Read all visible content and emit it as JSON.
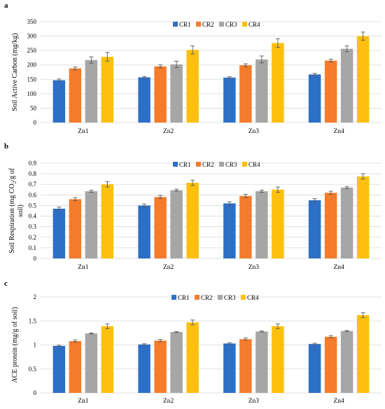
{
  "colors": {
    "CR1": "#2e6fc6",
    "CR2": "#f47c2c",
    "CR3": "#a6a6a6",
    "CR4": "#fdc00f",
    "grid": "#d9d9d9",
    "error_bar": "#595959"
  },
  "chart_data": [
    {
      "type": "bar",
      "panel_label": "a",
      "title": "",
      "ylabel": "Soil Active Carbon (mg/kg)",
      "xlabel": "",
      "categories": [
        "Zn1",
        "Zn2",
        "Zn3",
        "Zn4"
      ],
      "ylim": [
        0,
        350
      ],
      "yticks": [
        0,
        50,
        100,
        150,
        200,
        250,
        300,
        350
      ],
      "ytick_labels": [
        "0",
        "50",
        "100",
        "150",
        "200",
        "250",
        "300",
        "350"
      ],
      "grid": true,
      "legend": "top-center",
      "series": [
        {
          "name": "CR1",
          "values": [
            147,
            157,
            156,
            167
          ],
          "errors": [
            4,
            3,
            3,
            4
          ]
        },
        {
          "name": "CR2",
          "values": [
            188,
            195,
            199,
            215
          ],
          "errors": [
            5,
            5,
            5,
            5
          ]
        },
        {
          "name": "CR3",
          "values": [
            217,
            202,
            219,
            256
          ],
          "errors": [
            11,
            11,
            12,
            10
          ]
        },
        {
          "name": "CR4",
          "values": [
            228,
            252,
            276,
            300
          ],
          "errors": [
            15,
            14,
            15,
            14
          ]
        }
      ]
    },
    {
      "type": "bar",
      "panel_label": "b",
      "title": "",
      "ylabel": "Soil Respiration (mg CO2/g of soil)",
      "ylabel_parts": [
        "Soil Respiration (mg CO",
        "2",
        "/g of",
        "soil)"
      ],
      "xlabel": "",
      "categories": [
        "Zn1",
        "Zn2",
        "Zn3",
        "Zn4"
      ],
      "ylim": [
        0,
        0.9
      ],
      "yticks": [
        0,
        0.1,
        0.2,
        0.3,
        0.4,
        0.5,
        0.6,
        0.7,
        0.8,
        0.9
      ],
      "ytick_labels": [
        "0",
        "0.1",
        "0.2",
        "0.3",
        "0.4",
        "0.5",
        "0.6",
        "0.7",
        "0.8",
        "0.9"
      ],
      "grid": true,
      "legend": "top-center",
      "series": [
        {
          "name": "CR1",
          "values": [
            0.47,
            0.5,
            0.52,
            0.55
          ],
          "errors": [
            0.015,
            0.015,
            0.015,
            0.015
          ]
        },
        {
          "name": "CR2",
          "values": [
            0.56,
            0.58,
            0.59,
            0.62
          ],
          "errors": [
            0.015,
            0.015,
            0.015,
            0.015
          ]
        },
        {
          "name": "CR3",
          "values": [
            0.635,
            0.645,
            0.635,
            0.67
          ],
          "errors": [
            0.01,
            0.01,
            0.01,
            0.01
          ]
        },
        {
          "name": "CR4",
          "values": [
            0.7,
            0.715,
            0.65,
            0.775
          ],
          "errors": [
            0.025,
            0.025,
            0.025,
            0.025
          ]
        }
      ]
    },
    {
      "type": "bar",
      "panel_label": "c",
      "title": "",
      "ylabel": "ACE protein (mg/g of soil)",
      "xlabel": "",
      "categories": [
        "Zn1",
        "Zn2",
        "Zn3",
        "Zn4"
      ],
      "ylim": [
        0,
        2
      ],
      "yticks": [
        0,
        0.5,
        1,
        1.5,
        2
      ],
      "ytick_labels": [
        "0",
        "0.5",
        "1",
        "1.5",
        "2"
      ],
      "grid": true,
      "legend": "top-center",
      "series": [
        {
          "name": "CR1",
          "values": [
            0.98,
            1.01,
            1.03,
            1.02
          ],
          "errors": [
            0.015,
            0.015,
            0.015,
            0.015
          ]
        },
        {
          "name": "CR2",
          "values": [
            1.08,
            1.09,
            1.12,
            1.17
          ],
          "errors": [
            0.025,
            0.025,
            0.025,
            0.025
          ]
        },
        {
          "name": "CR3",
          "values": [
            1.24,
            1.27,
            1.28,
            1.29
          ],
          "errors": [
            0.01,
            0.01,
            0.01,
            0.01
          ]
        },
        {
          "name": "CR4",
          "values": [
            1.39,
            1.47,
            1.39,
            1.62
          ],
          "errors": [
            0.05,
            0.05,
            0.05,
            0.05
          ]
        }
      ]
    }
  ]
}
